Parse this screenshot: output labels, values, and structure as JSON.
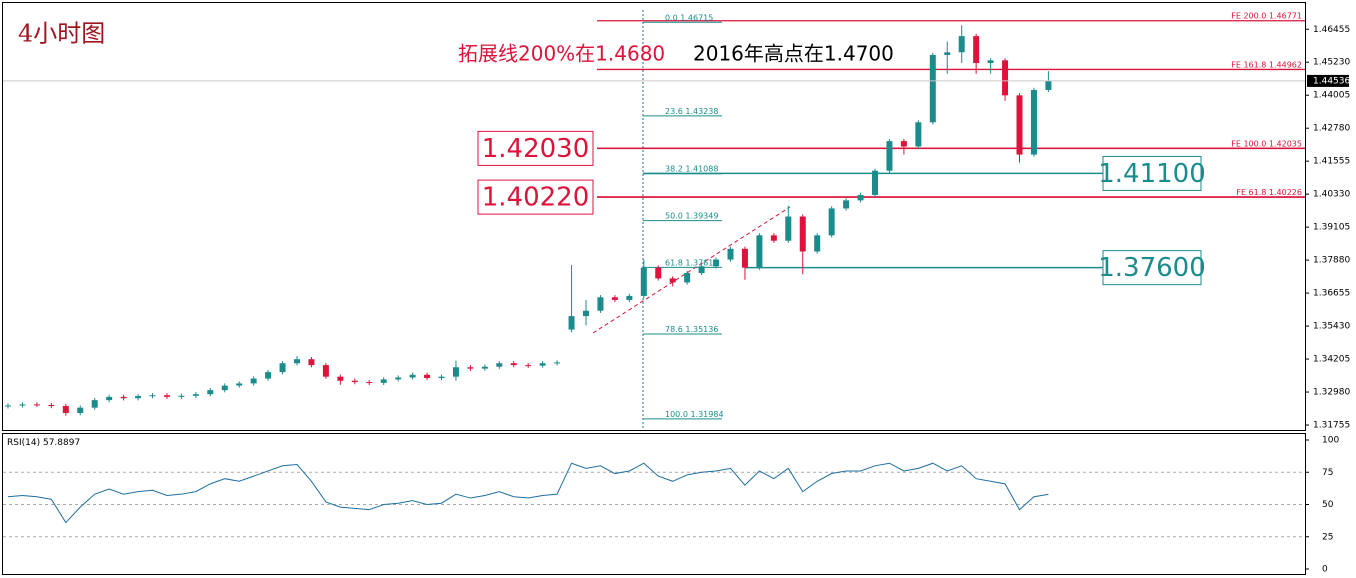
{
  "chart_data": [
    {
      "type": "candlestick",
      "title": "4小时图",
      "open": [
        1.3245,
        1.3248,
        1.3252,
        1.325,
        1.3246,
        1.322,
        1.324,
        1.3268,
        1.328,
        1.3275,
        1.3283,
        1.3286,
        1.328,
        1.3284,
        1.329,
        1.3305,
        1.3322,
        1.333,
        1.3348,
        1.3372,
        1.3405,
        1.342,
        1.3398,
        1.3355,
        1.334,
        1.3335,
        1.3332,
        1.3345,
        1.3352,
        1.3362,
        1.335,
        1.3355,
        1.339,
        1.3385,
        1.3392,
        1.3405,
        1.3398,
        1.3396,
        1.3405,
        1.353,
        1.358,
        1.36,
        1.365,
        1.364,
        1.3655,
        1.376,
        1.372,
        1.3705,
        1.374,
        1.3765,
        1.379,
        1.383,
        1.376,
        1.388,
        1.386,
        1.395,
        1.382,
        1.388,
        1.398,
        1.401,
        1.403,
        1.412,
        1.423,
        1.421,
        1.43,
        1.455,
        1.456,
        1.462,
        1.452,
        1.453,
        1.44,
        1.418,
        1.442
      ],
      "high": [
        1.3256,
        1.326,
        1.326,
        1.3258,
        1.3254,
        1.3248,
        1.3276,
        1.3288,
        1.3288,
        1.3291,
        1.3294,
        1.3294,
        1.3292,
        1.3298,
        1.3313,
        1.333,
        1.3338,
        1.3356,
        1.338,
        1.3413,
        1.3432,
        1.3428,
        1.3406,
        1.3363,
        1.3348,
        1.3343,
        1.3353,
        1.336,
        1.337,
        1.337,
        1.3363,
        1.3415,
        1.3398,
        1.34,
        1.3413,
        1.3413,
        1.3406,
        1.3413,
        1.3416,
        1.377,
        1.364,
        1.3658,
        1.3658,
        1.3663,
        1.379,
        1.3768,
        1.3728,
        1.3748,
        1.3773,
        1.3798,
        1.3838,
        1.3838,
        1.3888,
        1.3888,
        1.399,
        1.3958,
        1.3888,
        1.3988,
        1.4018,
        1.4038,
        1.4128,
        1.4238,
        1.4238,
        1.4308,
        1.4558,
        1.46,
        1.466,
        1.4628,
        1.4538,
        1.4538,
        1.4408,
        1.4428,
        1.449
      ],
      "low": [
        1.3237,
        1.324,
        1.3242,
        1.3238,
        1.321,
        1.3212,
        1.3232,
        1.326,
        1.3267,
        1.3267,
        1.3275,
        1.3272,
        1.3272,
        1.3276,
        1.3282,
        1.3297,
        1.3314,
        1.3322,
        1.334,
        1.3364,
        1.3397,
        1.339,
        1.3347,
        1.3325,
        1.3327,
        1.3324,
        1.3324,
        1.3337,
        1.3344,
        1.3342,
        1.3342,
        1.334,
        1.3377,
        1.3377,
        1.3384,
        1.339,
        1.3388,
        1.3388,
        1.3397,
        1.352,
        1.3545,
        1.3592,
        1.3632,
        1.3632,
        1.3647,
        1.3712,
        1.369,
        1.3697,
        1.3732,
        1.3757,
        1.3782,
        1.3715,
        1.3752,
        1.3852,
        1.3852,
        1.3735,
        1.3812,
        1.3872,
        1.3972,
        1.4002,
        1.4022,
        1.4112,
        1.418,
        1.4202,
        1.4292,
        1.448,
        1.452,
        1.448,
        1.448,
        1.438,
        1.415,
        1.4172,
        1.4412
      ],
      "close": [
        1.3248,
        1.3252,
        1.325,
        1.3246,
        1.322,
        1.324,
        1.3268,
        1.328,
        1.3275,
        1.3283,
        1.3286,
        1.328,
        1.3284,
        1.329,
        1.3305,
        1.3322,
        1.333,
        1.3348,
        1.3372,
        1.3405,
        1.342,
        1.3398,
        1.3355,
        1.334,
        1.3335,
        1.3332,
        1.3345,
        1.3352,
        1.3362,
        1.335,
        1.3355,
        1.339,
        1.3385,
        1.3392,
        1.3405,
        1.3398,
        1.3396,
        1.3405,
        1.3408,
        1.358,
        1.36,
        1.365,
        1.364,
        1.3655,
        1.376,
        1.372,
        1.3705,
        1.374,
        1.3765,
        1.379,
        1.383,
        1.376,
        1.388,
        1.386,
        1.395,
        1.382,
        1.388,
        1.398,
        1.401,
        1.403,
        1.412,
        1.423,
        1.421,
        1.43,
        1.455,
        1.456,
        1.462,
        1.452,
        1.453,
        1.44,
        1.418,
        1.442,
        1.44536
      ],
      "up_color": "#1b8c8c",
      "down_color": "#dc143c",
      "ylim": [
        1.3157,
        1.4743
      ],
      "yticks": [
        1.46455,
        {
          "value": 1.4523,
          "label": "1.45230"
        },
        1.44005,
        {
          "value": 1.4278,
          "label": "1.42780"
        },
        1.41555,
        {
          "value": 1.4033,
          "label": "1.40330"
        },
        1.39105,
        {
          "value": 1.3788,
          "label": "1.37880"
        },
        1.36655,
        {
          "value": 1.3543,
          "label": "1.35430"
        },
        1.34205,
        {
          "value": 1.3298,
          "label": "1.32980"
        },
        1.31755
      ],
      "fib_retracement": {
        "color": "#1b8c8c",
        "levels": [
          {
            "label": "0.0",
            "value": 1.46715
          },
          {
            "label": "23.6",
            "value": 1.43238
          },
          {
            "label": "38.2",
            "value": 1.41088
          },
          {
            "label": "50.0",
            "value": 1.39349
          },
          {
            "label": "61.8",
            "value": 1.37611
          },
          {
            "label": "78.6",
            "value": 1.35136
          },
          {
            "label": "100.0",
            "value": 1.31984
          }
        ]
      },
      "fib_expansion": {
        "color": "#dc143c",
        "levels": [
          {
            "label": "FE 200.0",
            "value": 1.46771
          },
          {
            "label": "FE 161.8",
            "value": 1.44962
          },
          {
            "label": "FE 100.0",
            "value": 1.42035
          },
          {
            "label": "FE 61.8",
            "value": 1.40226
          }
        ]
      },
      "price_levels": [
        {
          "value": 1.4203,
          "label": "1.42030",
          "color": "#dc143c"
        },
        {
          "value": 1.4022,
          "label": "1.40220",
          "color": "#dc143c"
        },
        {
          "value": 1.411,
          "label": "1.41100",
          "color": "#1b8c8c"
        },
        {
          "value": 1.376,
          "label": "1.37600",
          "color": "#1b8c8c"
        }
      ],
      "annotations": [
        {
          "text": "拓展线200%在1.4680",
          "color": "#dc143c"
        },
        {
          "text": "2016年高点在1.4700",
          "color": "#000000"
        }
      ]
    },
    {
      "type": "line",
      "title": "RSI(14)",
      "color": "#1f6fa0",
      "values": [
        56,
        57,
        56,
        54,
        36,
        48,
        58,
        62,
        58,
        60,
        61,
        57,
        58,
        60,
        66,
        70,
        68,
        72,
        76,
        80,
        81,
        68,
        52,
        48,
        47,
        46,
        50,
        51,
        53,
        50,
        51,
        58,
        55,
        57,
        60,
        56,
        55,
        57,
        58,
        82,
        78,
        80,
        74,
        76,
        82,
        72,
        68,
        73,
        75,
        76,
        78,
        65,
        76,
        70,
        78,
        60,
        68,
        74,
        76,
        76,
        80,
        82,
        76,
        78,
        82,
        76,
        80,
        70,
        68,
        66,
        46,
        56,
        57.8897
      ],
      "ylim": [
        0,
        100
      ],
      "yticks": [
        0,
        25,
        50,
        75,
        100
      ],
      "grid": true
    }
  ]
}
